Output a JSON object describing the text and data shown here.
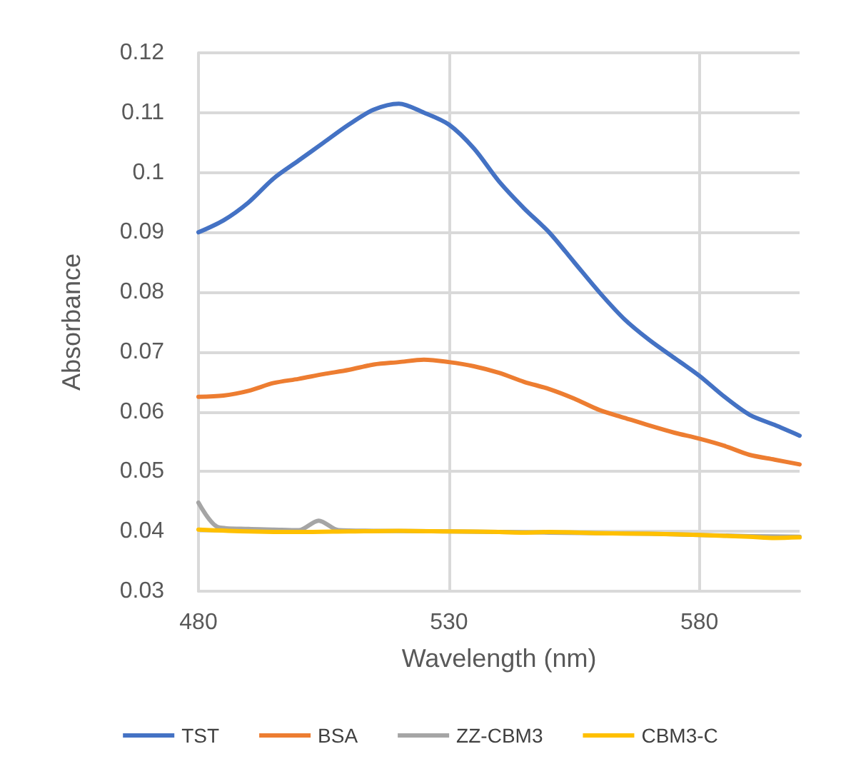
{
  "chart_data": {
    "type": "line",
    "xlabel": "Wavelength (nm)",
    "ylabel": "Absorbance",
    "xlim": [
      480,
      600
    ],
    "xticks": [
      480,
      530,
      580
    ],
    "ylim": [
      0.03,
      0.12
    ],
    "yticks": [
      0.03,
      0.04,
      0.05,
      0.06,
      0.07,
      0.08,
      0.09,
      0.1,
      0.11,
      0.12
    ],
    "grid": true,
    "legend": "bottom",
    "marker": "none",
    "line_style": "solid",
    "series": [
      {
        "name": "TST",
        "color": "#4472c4",
        "x": [
          480,
          485,
          490,
          495,
          500,
          505,
          510,
          515,
          520,
          525,
          530,
          535,
          540,
          545,
          550,
          555,
          560,
          565,
          570,
          575,
          580,
          585,
          590,
          595,
          600
        ],
        "values": [
          0.09,
          0.092,
          0.095,
          0.099,
          0.102,
          0.105,
          0.108,
          0.1105,
          0.1115,
          0.11,
          0.108,
          0.104,
          0.0985,
          0.094,
          0.09,
          0.085,
          0.08,
          0.0755,
          0.072,
          0.069,
          0.066,
          0.0625,
          0.0595,
          0.0578,
          0.056
        ]
      },
      {
        "name": "BSA",
        "color": "#ed7d31",
        "x": [
          480,
          485,
          490,
          495,
          500,
          505,
          510,
          515,
          520,
          525,
          530,
          535,
          540,
          545,
          550,
          555,
          560,
          565,
          570,
          575,
          580,
          585,
          590,
          595,
          600
        ],
        "values": [
          0.0625,
          0.0627,
          0.0635,
          0.0648,
          0.0655,
          0.0663,
          0.067,
          0.0679,
          0.0683,
          0.0687,
          0.0683,
          0.0676,
          0.0665,
          0.065,
          0.0638,
          0.0622,
          0.0603,
          0.059,
          0.0577,
          0.0565,
          0.0555,
          0.0543,
          0.0528,
          0.052,
          0.0512
        ]
      },
      {
        "name": "ZZ-CBM3",
        "color": "#a5a5a5",
        "x": [
          480,
          484,
          490,
          495,
          500,
          504,
          508,
          515,
          530,
          550,
          570,
          590,
          600
        ],
        "values": [
          0.0448,
          0.0407,
          0.0404,
          0.0403,
          0.0402,
          0.0418,
          0.0402,
          0.0401,
          0.04,
          0.0398,
          0.0396,
          0.0392,
          0.0391
        ]
      },
      {
        "name": "CBM3-C",
        "color": "#ffc000",
        "x": [
          480,
          490,
          500,
          510,
          520,
          530,
          540,
          545,
          550,
          560,
          570,
          580,
          590,
          595,
          600
        ],
        "values": [
          0.0403,
          0.04,
          0.0399,
          0.04,
          0.0401,
          0.04,
          0.0399,
          0.0398,
          0.0399,
          0.0397,
          0.0396,
          0.0394,
          0.0391,
          0.0389,
          0.039
        ]
      }
    ]
  }
}
